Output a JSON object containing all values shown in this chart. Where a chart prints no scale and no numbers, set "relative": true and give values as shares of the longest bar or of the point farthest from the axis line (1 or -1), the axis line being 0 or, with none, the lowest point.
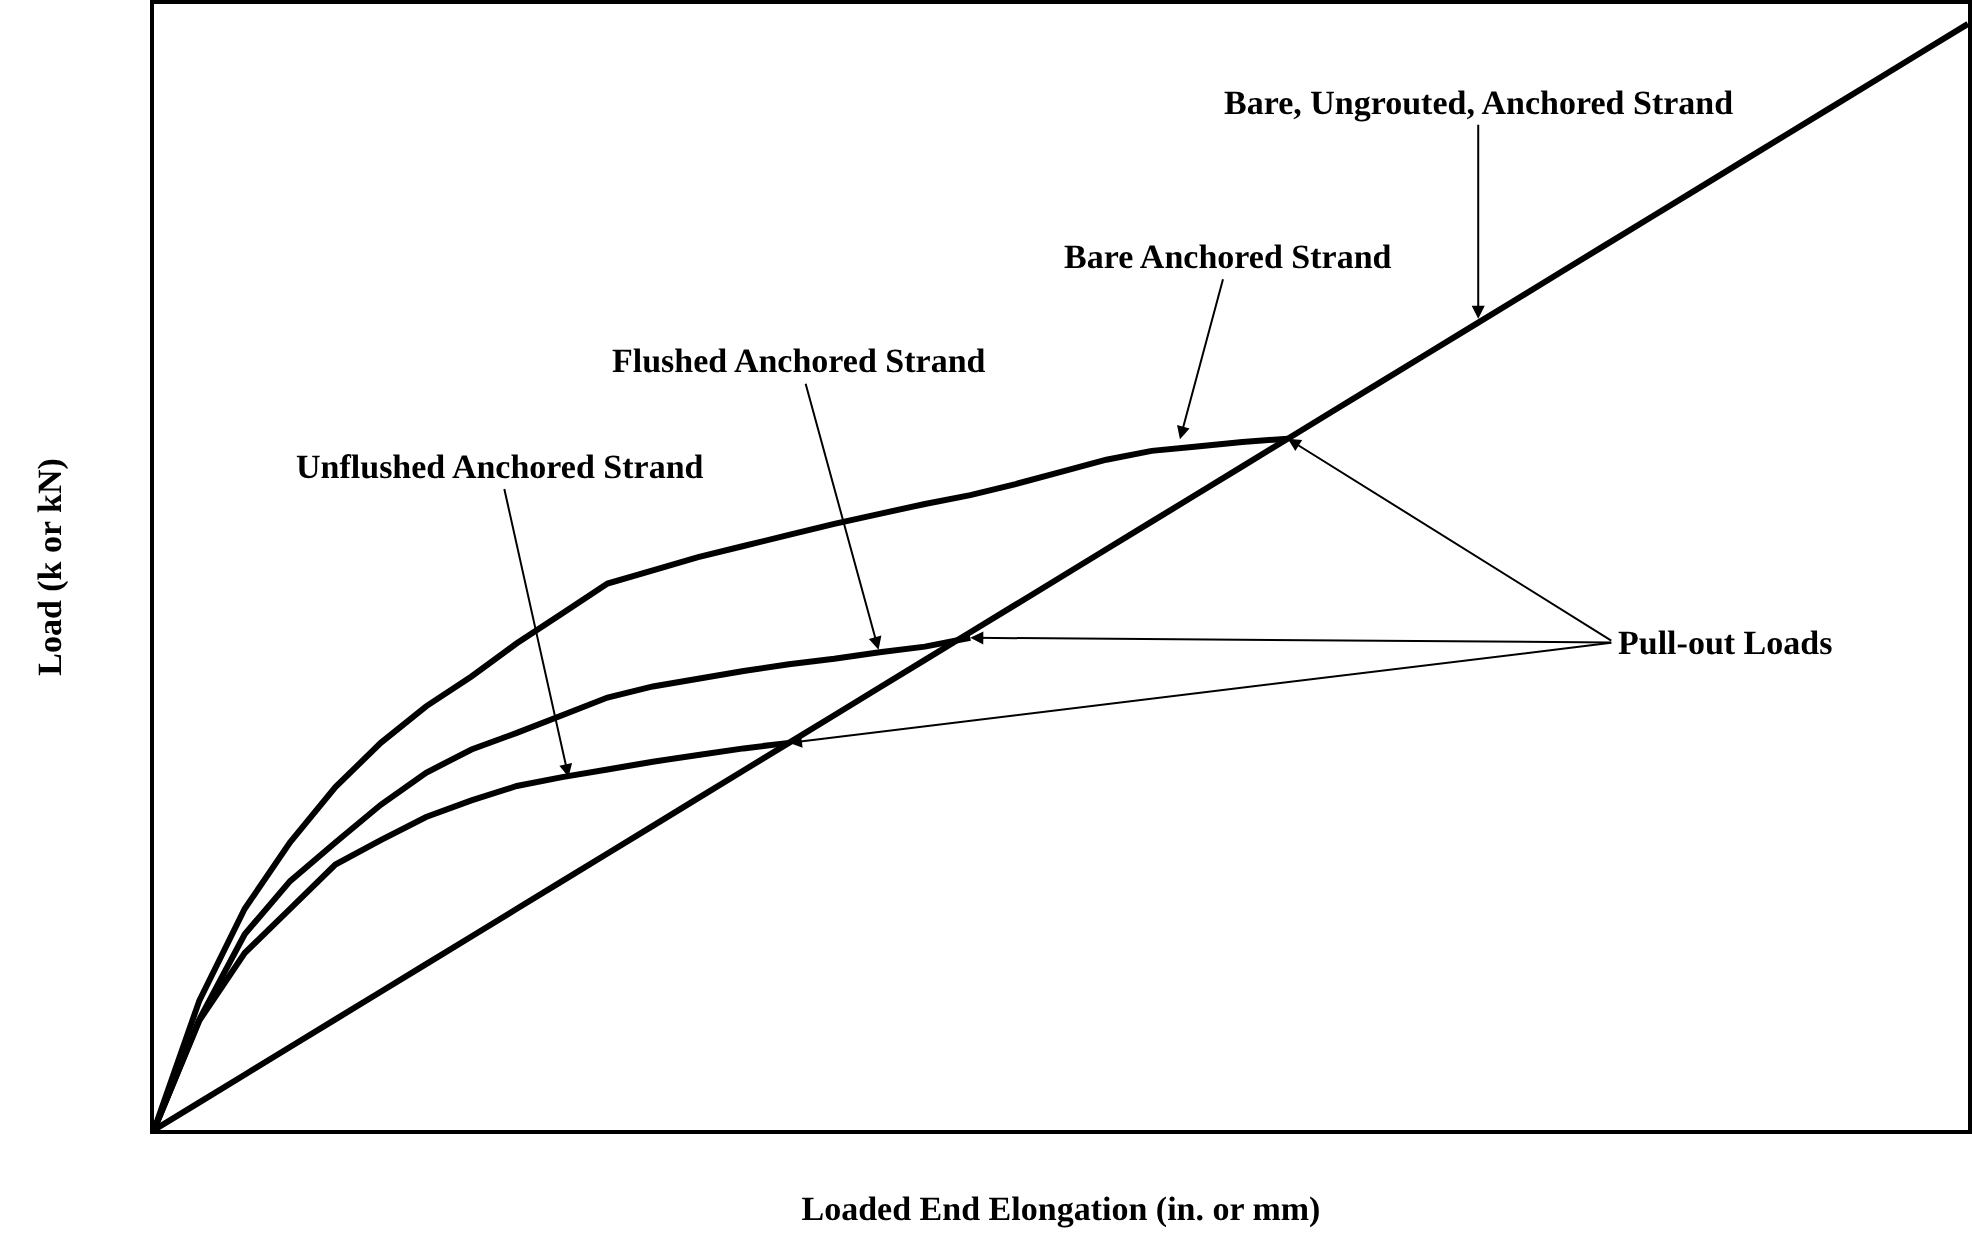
{
  "chart_data": {
    "type": "line",
    "relative": true,
    "xlabel": "Loaded End Elongation (in. or mm)",
    "ylabel": "Load (k or kN)",
    "marker": "none",
    "line_style": "solid",
    "categories": [
      null,
      null,
      null,
      null,
      null,
      null,
      null,
      null,
      null,
      null,
      null,
      null,
      null,
      null,
      null,
      null,
      null,
      null,
      null,
      null,
      null,
      null,
      null,
      null,
      null,
      null,
      null,
      null,
      null,
      null,
      null,
      null,
      null,
      null,
      null,
      null,
      null,
      null,
      null,
      null,
      null
    ],
    "series": [
      {
        "color": "#000000",
        "values": [
          0,
          0.025,
          0.05,
          0.075,
          0.1,
          0.125,
          0.15,
          0.175,
          0.2,
          0.225,
          0.25,
          0.275,
          0.3,
          0.325,
          0.35,
          0.375,
          0.4,
          0.425,
          0.45,
          0.475,
          0.5,
          0.525,
          0.55,
          0.575,
          0.6,
          0.625,
          0.65,
          0.675,
          0.7,
          0.725,
          0.75,
          0.775,
          0.8,
          0.825,
          0.85,
          0.875,
          0.9,
          0.925,
          0.95,
          0.975,
          1
        ]
      },
      {
        "color": "#000000",
        "values": [
          0,
          0.117,
          0.2,
          0.26,
          0.31,
          0.35,
          0.383,
          0.41,
          0.44,
          0.467,
          0.494,
          0.506,
          0.518,
          0.528,
          0.538,
          0.548,
          0.557,
          0.566,
          0.574,
          0.584,
          0.595,
          0.606,
          0.614,
          0.618,
          0.622,
          0.625,
          null,
          null,
          null,
          null,
          null,
          null,
          null,
          null,
          null,
          null,
          null,
          null,
          null,
          null,
          null
        ]
      },
      {
        "color": "#000000",
        "values": [
          0,
          0.1,
          0.177,
          0.225,
          0.26,
          0.294,
          0.323,
          0.344,
          0.359,
          0.375,
          0.391,
          0.401,
          0.408,
          0.415,
          0.421,
          0.426,
          0.432,
          0.437,
          0.445,
          null,
          null,
          null,
          null,
          null,
          null,
          null,
          null,
          null,
          null,
          null,
          null,
          null,
          null,
          null,
          null,
          null,
          null,
          null,
          null,
          null,
          null
        ]
      },
      {
        "color": "#000000",
        "values": [
          0,
          0.099,
          0.16,
          0.2,
          0.24,
          0.262,
          0.283,
          0.298,
          0.311,
          0.319,
          0.326,
          0.333,
          0.339,
          0.345,
          0.35,
          null,
          null,
          null,
          null,
          null,
          null,
          null,
          null,
          null,
          null,
          null,
          null,
          null,
          null,
          null,
          null,
          null,
          null,
          null,
          null,
          null,
          null,
          null,
          null,
          null,
          null
        ]
      }
    ],
    "annotations": [
      "Bare, Ungrouted, Anchored Strand",
      "Bare Anchored Strand",
      "Flushed Anchored Strand",
      "Unflushed Anchored Strand",
      "Pull-out Loads"
    ]
  }
}
